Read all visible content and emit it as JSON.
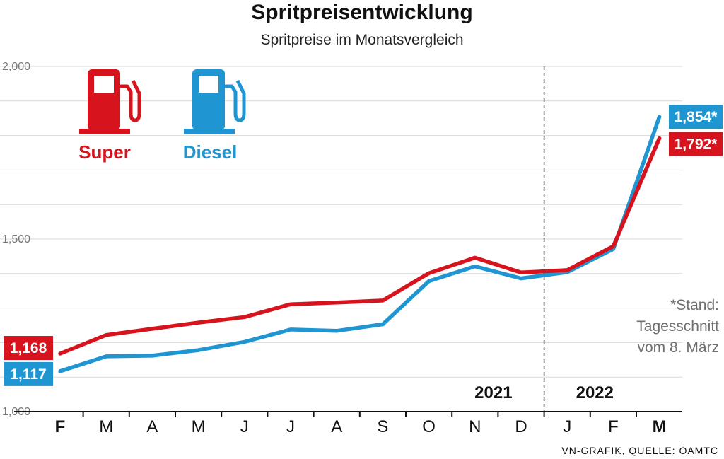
{
  "chart_data": {
    "type": "line",
    "title": "Spritpreisentwicklung",
    "subtitle": "Spritpreise im Monatsvergleich",
    "categories": [
      "F",
      "M",
      "A",
      "M",
      "J",
      "J",
      "A",
      "S",
      "O",
      "N",
      "D",
      "J",
      "F",
      "M"
    ],
    "bold_categories": [
      0,
      13
    ],
    "ylim": [
      1.0,
      2.0
    ],
    "yticks": [
      {
        "value": 1.0,
        "label": "1,000"
      },
      {
        "value": 1.5,
        "label": "1,500"
      },
      {
        "value": 2.0,
        "label": "2,000"
      }
    ],
    "grid_step": 0.1,
    "year_labels": [
      {
        "text": "2021",
        "at_category": 9.4
      },
      {
        "text": "2022",
        "at_category": 11.6
      }
    ],
    "divider_between": [
      10,
      11
    ],
    "series": [
      {
        "name": "Super",
        "color": "#d7141e",
        "values": [
          1.168,
          1.222,
          1.24,
          1.258,
          1.274,
          1.311,
          1.316,
          1.322,
          1.401,
          1.446,
          1.403,
          1.41,
          1.479,
          1.792
        ],
        "start_label": "1,168",
        "end_label": "1,792*"
      },
      {
        "name": "Diesel",
        "color": "#1f95d2",
        "values": [
          1.117,
          1.16,
          1.162,
          1.178,
          1.202,
          1.238,
          1.234,
          1.253,
          1.378,
          1.421,
          1.386,
          1.404,
          1.471,
          1.854
        ],
        "start_label": "1,117",
        "end_label": "1,854*"
      }
    ]
  },
  "legend": [
    {
      "name": "Super",
      "color": "#d7141e",
      "icon": "fuel-pump-icon"
    },
    {
      "name": "Diesel",
      "color": "#1f95d2",
      "icon": "fuel-pump-icon"
    }
  ],
  "note": {
    "line1": "*Stand:",
    "line2": "Tagesschnitt",
    "line3": "vom 8. März"
  },
  "source": "VN-GRAFIK, QUELLE: ÖAMTC"
}
